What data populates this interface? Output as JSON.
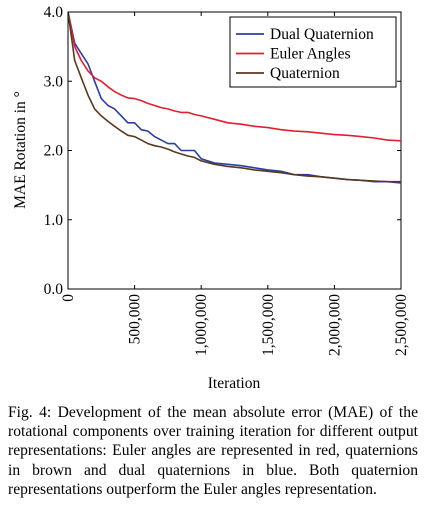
{
  "chart_data": {
    "type": "line",
    "xlabel": "Iteration",
    "ylabel": "MAE Rotation in °",
    "xlim": [
      0,
      2500000
    ],
    "ylim": [
      0,
      4
    ],
    "x_ticks": [
      0,
      500000,
      1000000,
      1500000,
      2000000,
      2500000
    ],
    "x_tick_labels": [
      "0",
      "500,000",
      "1,000,000",
      "1,500,000",
      "2,000,000",
      "2,500,000"
    ],
    "y_ticks": [
      0,
      1,
      2,
      3,
      4
    ],
    "y_tick_labels": [
      "0.0",
      "1.0",
      "2.0",
      "3.0",
      "4.0"
    ],
    "legend_position": "top-right",
    "grid": false,
    "series": [
      {
        "name": "Dual Quaternion",
        "color": "#2b3ea8",
        "x": [
          0,
          50000,
          100000,
          150000,
          200000,
          250000,
          300000,
          350000,
          400000,
          450000,
          500000,
          550000,
          600000,
          650000,
          700000,
          750000,
          800000,
          850000,
          900000,
          950000,
          1000000,
          1100000,
          1200000,
          1300000,
          1400000,
          1500000,
          1600000,
          1700000,
          1800000,
          1900000,
          2000000,
          2100000,
          2200000,
          2300000,
          2400000,
          2500000
        ],
        "values": [
          4.0,
          3.55,
          3.4,
          3.25,
          3.0,
          2.75,
          2.65,
          2.6,
          2.5,
          2.4,
          2.4,
          2.3,
          2.28,
          2.2,
          2.15,
          2.1,
          2.1,
          2.0,
          2.0,
          2.0,
          1.88,
          1.82,
          1.8,
          1.78,
          1.75,
          1.72,
          1.7,
          1.65,
          1.65,
          1.62,
          1.6,
          1.58,
          1.57,
          1.55,
          1.55,
          1.53
        ]
      },
      {
        "name": "Euler Angles",
        "color": "#e0202c",
        "x": [
          0,
          50000,
          100000,
          150000,
          200000,
          250000,
          300000,
          350000,
          400000,
          450000,
          500000,
          550000,
          600000,
          650000,
          700000,
          750000,
          800000,
          850000,
          900000,
          950000,
          1000000,
          1100000,
          1200000,
          1300000,
          1400000,
          1500000,
          1600000,
          1700000,
          1800000,
          1900000,
          2000000,
          2100000,
          2200000,
          2300000,
          2400000,
          2500000
        ],
        "values": [
          4.0,
          3.5,
          3.3,
          3.15,
          3.05,
          3.0,
          2.92,
          2.85,
          2.8,
          2.76,
          2.75,
          2.72,
          2.68,
          2.65,
          2.62,
          2.6,
          2.57,
          2.55,
          2.55,
          2.52,
          2.5,
          2.45,
          2.4,
          2.38,
          2.35,
          2.33,
          2.3,
          2.28,
          2.27,
          2.25,
          2.23,
          2.22,
          2.2,
          2.18,
          2.15,
          2.14
        ]
      },
      {
        "name": "Quaternion",
        "color": "#5a3a1e",
        "x": [
          0,
          50000,
          100000,
          150000,
          200000,
          250000,
          300000,
          350000,
          400000,
          450000,
          500000,
          550000,
          600000,
          650000,
          700000,
          750000,
          800000,
          850000,
          900000,
          950000,
          1000000,
          1100000,
          1200000,
          1300000,
          1400000,
          1500000,
          1600000,
          1700000,
          1800000,
          1900000,
          2000000,
          2100000,
          2200000,
          2300000,
          2400000,
          2500000
        ],
        "values": [
          4.0,
          3.3,
          3.05,
          2.8,
          2.6,
          2.5,
          2.42,
          2.35,
          2.28,
          2.22,
          2.2,
          2.15,
          2.1,
          2.07,
          2.05,
          2.02,
          1.98,
          1.95,
          1.92,
          1.9,
          1.85,
          1.8,
          1.77,
          1.75,
          1.72,
          1.7,
          1.68,
          1.65,
          1.63,
          1.62,
          1.6,
          1.58,
          1.57,
          1.56,
          1.55,
          1.55
        ]
      }
    ]
  },
  "caption": "Fig. 4: Development of the mean absolute error (MAE) of the rotational components over training iteration for different output representations: Euler angles are represented in red, quaternions in brown and dual quaternions in blue. Both quaternion representations outperform the Euler angles representation."
}
